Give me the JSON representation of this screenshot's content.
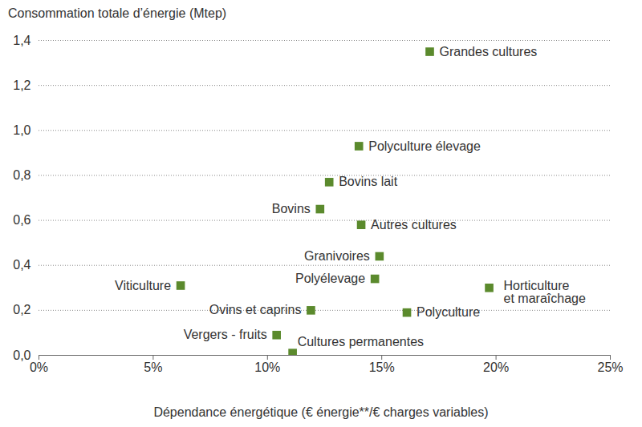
{
  "chart_data": {
    "type": "scatter",
    "y_label": "Consommation totale d’énergie (Mtep)",
    "x_label": "Dépendance énergétique (€ énergie**/€ charges variables)",
    "color": "#5b8a2d",
    "marker": "square",
    "grid": "y",
    "labels": [
      "Grandes cultures",
      "Polyculture élevage",
      "Bovins lait",
      "Bovins",
      "Autres cultures",
      "Granivoires",
      "Polyélevage",
      "Viticulture",
      "Horticulture\net maraîchage",
      "Ovins et caprins",
      "Polyculture",
      "Vergers - fruits",
      "Cultures permanentes"
    ],
    "x": [
      17.1,
      14.0,
      12.7,
      12.3,
      14.1,
      14.9,
      14.7,
      6.2,
      19.7,
      11.9,
      16.1,
      10.4,
      11.1
    ],
    "values": [
      1.35,
      0.93,
      0.77,
      0.65,
      0.58,
      0.44,
      0.34,
      0.31,
      0.3,
      0.2,
      0.19,
      0.09,
      0.01
    ],
    "xlim": [
      0,
      25
    ],
    "xticks": [
      {
        "value": 0,
        "label": "0%"
      },
      {
        "value": 5,
        "label": "5%"
      },
      {
        "value": 10,
        "label": "10%"
      },
      {
        "value": 15,
        "label": "15%"
      },
      {
        "value": 20,
        "label": "20%"
      },
      {
        "value": 25,
        "label": "25%"
      }
    ],
    "ylim": [
      0,
      1.4
    ],
    "yticks": [
      {
        "value": 0,
        "label": "0,0"
      },
      {
        "value": 0.2,
        "label": "0,2"
      },
      {
        "value": 0.4,
        "label": "0,4"
      },
      {
        "value": 0.6,
        "label": "0,6"
      },
      {
        "value": 0.8,
        "label": "0,8"
      },
      {
        "value": 1.0,
        "label": "1,0"
      },
      {
        "value": 1.2,
        "label": "1,2"
      },
      {
        "value": 1.4,
        "label": "1,4"
      }
    ]
  }
}
